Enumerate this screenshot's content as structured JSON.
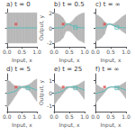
{
  "chart_data": [
    {
      "type": "line",
      "title": "a) t = 0",
      "xlabel": "Input, x",
      "x": [
        0.0,
        0.1,
        0.2,
        0.3,
        0.4,
        0.5,
        0.6,
        0.7,
        0.8,
        0.9,
        1.0
      ],
      "xlim": [
        0.0,
        1.0
      ],
      "xticks": [
        {
          "value": 0.0,
          "label": "0.0"
        },
        {
          "value": 0.5,
          "label": "0.5"
        },
        {
          "value": 1.0,
          "label": "1.0"
        }
      ],
      "ylim": [
        -2.5,
        2.5
      ],
      "yticks": [
        -2,
        0,
        2
      ],
      "grid": false,
      "tick_labels": "x",
      "series": [
        {
          "type": "band",
          "color": "#b8b8b8",
          "upper": [
            2.0,
            2.0,
            2.0,
            2.0,
            2.0,
            2.0,
            2.0,
            2.0,
            2.0,
            2.0,
            2.0
          ],
          "lower": [
            -2.0,
            -2.0,
            -2.0,
            -2.0,
            -2.0,
            -2.0,
            -2.0,
            -2.0,
            -2.0,
            -2.0,
            -2.0
          ]
        },
        {
          "type": "line",
          "color": "#5bbcb8",
          "values": [
            0.0,
            0.0,
            0.0,
            0.0,
            0.0,
            0.0,
            0.0,
            0.0,
            0.0,
            0.0,
            0.0
          ]
        },
        {
          "type": "scatter",
          "marker": "square",
          "color": "#e05050",
          "x": [
            0.3
          ],
          "values": [
            0.5
          ]
        }
      ]
    },
    {
      "type": "line",
      "title": "b) t = 0.5",
      "xlabel": "Input, x",
      "ylabel": "Output, y",
      "x": [
        0.0,
        0.1,
        0.2,
        0.3,
        0.4,
        0.5,
        0.6,
        0.7,
        0.8,
        0.9,
        1.0
      ],
      "xlim": [
        0.0,
        1.0
      ],
      "xticks": [
        {
          "value": 0.0,
          "label": "0.0"
        },
        {
          "value": 0.5,
          "label": "0.5"
        },
        {
          "value": 1.0,
          "label": "1.0"
        }
      ],
      "ylim": [
        -2.5,
        2.5
      ],
      "yticks": [
        -2,
        0,
        2
      ],
      "grid": false,
      "series": [
        {
          "type": "band",
          "color": "#b8b8b8",
          "upper": [
            2.0,
            1.9,
            1.7,
            1.3,
            0.6,
            0.6,
            0.9,
            1.4,
            1.7,
            1.9,
            2.0
          ],
          "lower": [
            -2.0,
            -1.9,
            -1.7,
            -1.3,
            -0.4,
            -0.4,
            -0.7,
            -1.2,
            -1.6,
            -1.8,
            -2.0
          ]
        },
        {
          "type": "line",
          "color": "#5bbcb8",
          "values": [
            0.0,
            0.0,
            0.0,
            0.0,
            0.5,
            0.5,
            0.3,
            0.1,
            0.05,
            0.02,
            0.0
          ]
        },
        {
          "type": "scatter",
          "marker": "square",
          "color": "#e05050",
          "x": [
            0.3
          ],
          "values": [
            0.5
          ]
        },
        {
          "type": "scatter",
          "marker": "open_square",
          "color": "#5bbcb8",
          "x": [
            0.7
          ],
          "values": [
            0.08
          ]
        }
      ]
    },
    {
      "type": "line",
      "title": "c) t = ∞",
      "xlabel": "Input, x",
      "x": [
        0.0,
        0.1,
        0.2,
        0.3,
        0.4,
        0.5,
        0.6,
        0.7,
        0.8,
        0.9,
        1.0
      ],
      "xlim": [
        0.0,
        1.0
      ],
      "xticks": [
        {
          "value": 0.0,
          "label": "0.0"
        },
        {
          "value": 0.5,
          "label": "0.5"
        },
        {
          "value": 1.0,
          "label": "1.0"
        }
      ],
      "ylim": [
        -2.5,
        2.5
      ],
      "yticks": [
        -2,
        0,
        2
      ],
      "grid": false,
      "tick_labels": "x",
      "series": [
        {
          "type": "band",
          "color": "#b8b8b8",
          "upper": [
            1.8,
            1.6,
            1.3,
            0.8,
            0.5,
            0.5,
            0.55,
            0.85,
            1.2,
            1.55,
            1.8
          ],
          "lower": [
            -1.8,
            -1.6,
            -1.3,
            -0.8,
            0.45,
            0.45,
            0.25,
            0.08,
            -0.2,
            -0.5,
            -0.8
          ]
        },
        {
          "type": "line",
          "color": "#5bbcb8",
          "values": [
            0.0,
            0.0,
            0.0,
            0.0,
            0.5,
            0.5,
            0.3,
            0.1,
            0.05,
            0.02,
            0.0
          ]
        },
        {
          "type": "scatter",
          "marker": "square",
          "color": "#e05050",
          "x": [
            0.3
          ],
          "values": [
            0.5
          ]
        },
        {
          "type": "scatter",
          "marker": "open_square",
          "color": "#5bbcb8",
          "x": [
            0.7
          ],
          "values": [
            0.08
          ]
        }
      ]
    },
    {
      "type": "line",
      "title": "d) t = 5",
      "xlabel": "Input, x",
      "x": [
        0.0,
        0.1,
        0.2,
        0.3,
        0.4,
        0.5,
        0.6,
        0.7,
        0.8,
        0.9,
        1.0
      ],
      "xlim": [
        0.0,
        1.0
      ],
      "xticks": [
        {
          "value": 0.0,
          "label": "0.0"
        },
        {
          "value": 0.5,
          "label": "0.5"
        },
        {
          "value": 1.0,
          "label": "1.0"
        }
      ],
      "ylim": [
        -1.5,
        1.5
      ],
      "yticks": [
        -1,
        0,
        1
      ],
      "grid": false,
      "tick_labels": "x",
      "series": [
        {
          "type": "band",
          "color": "#b8b8b8",
          "upper": [
            1.0,
            0.9,
            0.65,
            0.5,
            0.55,
            0.5,
            0.55,
            0.6,
            0.75,
            0.95,
            1.1
          ],
          "lower": [
            -1.2,
            -0.9,
            -0.55,
            -0.2,
            0.2,
            0.4,
            0.35,
            0.25,
            0.02,
            -0.35,
            -0.7
          ]
        },
        {
          "type": "line",
          "color": "#5bbcb8",
          "values": [
            -0.1,
            0.0,
            0.05,
            0.15,
            0.38,
            0.45,
            0.45,
            0.42,
            0.38,
            0.3,
            0.2
          ]
        },
        {
          "type": "scatter",
          "marker": "square",
          "color": "#e05050",
          "x": [
            0.3
          ],
          "values": [
            0.45
          ]
        },
        {
          "type": "scatter",
          "marker": "open_square",
          "color": "#5bbcb8",
          "x": [
            0.7
          ],
          "values": [
            0.38
          ]
        }
      ]
    },
    {
      "type": "line",
      "title": "e) t = 25",
      "xlabel": "Input, x",
      "ylabel": "Output, y",
      "x": [
        0.0,
        0.1,
        0.2,
        0.3,
        0.4,
        0.5,
        0.6,
        0.7,
        0.8,
        0.9,
        1.0
      ],
      "xlim": [
        0.0,
        1.0
      ],
      "xticks": [
        {
          "value": 0.0,
          "label": "0.0"
        },
        {
          "value": 0.5,
          "label": "0.5"
        },
        {
          "value": 1.0,
          "label": "1.0"
        }
      ],
      "ylim": [
        -1.5,
        1.5
      ],
      "yticks": [
        -1,
        0,
        1
      ],
      "grid": false,
      "series": [
        {
          "type": "band",
          "color": "#b8b8b8",
          "upper": [
            0.8,
            0.65,
            0.45,
            0.35,
            0.5,
            0.48,
            0.52,
            0.55,
            0.65,
            0.8,
            0.95
          ],
          "lower": [
            -1.0,
            -0.65,
            -0.35,
            -0.05,
            0.25,
            0.42,
            0.38,
            0.3,
            0.12,
            -0.2,
            -0.55
          ]
        },
        {
          "type": "line",
          "color": "#5bbcb8",
          "values": [
            -0.1,
            0.0,
            0.05,
            0.15,
            0.38,
            0.45,
            0.45,
            0.42,
            0.38,
            0.3,
            0.2
          ]
        },
        {
          "type": "scatter",
          "marker": "square",
          "color": "#e05050",
          "x": [
            0.3
          ],
          "values": [
            0.45
          ]
        },
        {
          "type": "scatter",
          "marker": "open_square",
          "color": "#5bbcb8",
          "x": [
            0.7
          ],
          "values": [
            0.38
          ]
        }
      ]
    },
    {
      "type": "line",
      "title": "f) t = ∞",
      "xlabel": "Input, x",
      "x": [
        0.0,
        0.1,
        0.2,
        0.3,
        0.4,
        0.5,
        0.6,
        0.7,
        0.8,
        0.9,
        1.0
      ],
      "xlim": [
        0.0,
        1.0
      ],
      "xticks": [
        {
          "value": 0.0,
          "label": "0.0"
        },
        {
          "value": 0.5,
          "label": "0.5"
        },
        {
          "value": 1.0,
          "label": "1.0"
        }
      ],
      "ylim": [
        -1.5,
        1.5
      ],
      "yticks": [
        -1,
        0,
        1
      ],
      "grid": false,
      "tick_labels": "x",
      "series": [
        {
          "type": "band",
          "color": "#b8b8b8",
          "upper": [
            0.7,
            0.55,
            0.38,
            0.28,
            0.42,
            0.46,
            0.48,
            0.5,
            0.58,
            0.72,
            0.88
          ],
          "lower": [
            -0.9,
            -0.55,
            -0.28,
            0.02,
            0.32,
            0.44,
            0.42,
            0.34,
            0.18,
            -0.12,
            -0.48
          ]
        },
        {
          "type": "line",
          "color": "#5bbcb8",
          "values": [
            -0.1,
            0.0,
            0.05,
            0.15,
            0.38,
            0.45,
            0.45,
            0.42,
            0.38,
            0.3,
            0.2
          ]
        },
        {
          "type": "scatter",
          "marker": "square",
          "color": "#e05050",
          "x": [
            0.3
          ],
          "values": [
            0.45
          ]
        },
        {
          "type": "scatter",
          "marker": "open_square",
          "color": "#5bbcb8",
          "x": [
            0.7
          ],
          "values": [
            0.38
          ]
        }
      ]
    }
  ]
}
